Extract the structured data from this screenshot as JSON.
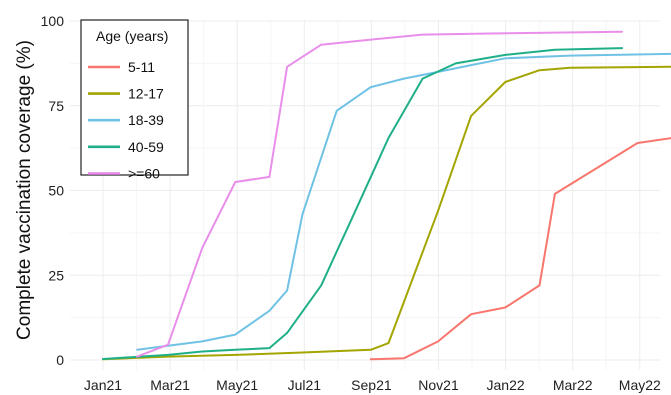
{
  "chart_data": {
    "type": "line",
    "title": "",
    "xlabel": "",
    "ylabel": "Complete vaccination coverage (%)",
    "x_ticks": [
      "Jan21",
      "Mar21",
      "May21",
      "Jul21",
      "Sep21",
      "Nov21",
      "Jan22",
      "Mar22",
      "May22"
    ],
    "ylim": [
      0,
      100
    ],
    "y_ticks": [
      0,
      25,
      50,
      75,
      100
    ],
    "grid": true,
    "legend": {
      "title": "Age (years)",
      "position": "top-left"
    },
    "series": [
      {
        "name": "5-11",
        "color": "#F8766D",
        "points": [
          {
            "x": "2021-09-15",
            "y": 0.2
          },
          {
            "x": "2021-10-15",
            "y": 0.5
          },
          {
            "x": "2021-11-15",
            "y": 5.5
          },
          {
            "x": "2021-12-15",
            "y": 13.5
          },
          {
            "x": "2022-01-15",
            "y": 15.5
          },
          {
            "x": "2022-02-15",
            "y": 22
          },
          {
            "x": "2022-03-01",
            "y": 49
          },
          {
            "x": "2022-05-15",
            "y": 64
          },
          {
            "x": "2022-06-15",
            "y": 65.5
          }
        ]
      },
      {
        "name": "12-17",
        "color": "#A3A500",
        "points": [
          {
            "x": "2021-01-15",
            "y": 0.2
          },
          {
            "x": "2021-03-15",
            "y": 1
          },
          {
            "x": "2021-05-15",
            "y": 1.5
          },
          {
            "x": "2021-07-15",
            "y": 2.2
          },
          {
            "x": "2021-09-15",
            "y": 3
          },
          {
            "x": "2021-10-01",
            "y": 5
          },
          {
            "x": "2021-11-15",
            "y": 44
          },
          {
            "x": "2021-12-15",
            "y": 72
          },
          {
            "x": "2022-01-15",
            "y": 82
          },
          {
            "x": "2022-02-15",
            "y": 85.5
          },
          {
            "x": "2022-03-15",
            "y": 86.2
          },
          {
            "x": "2022-06-15",
            "y": 86.5
          }
        ]
      },
      {
        "name": "18-39",
        "color": "#6FC2E5",
        "points": [
          {
            "x": "2021-02-15",
            "y": 3
          },
          {
            "x": "2021-03-15",
            "y": 4.2
          },
          {
            "x": "2021-04-15",
            "y": 5.5
          },
          {
            "x": "2021-05-15",
            "y": 7.5
          },
          {
            "x": "2021-06-15",
            "y": 14.5
          },
          {
            "x": "2021-07-01",
            "y": 20.5
          },
          {
            "x": "2021-07-15",
            "y": 43
          },
          {
            "x": "2021-08-15",
            "y": 73.5
          },
          {
            "x": "2021-09-15",
            "y": 80.5
          },
          {
            "x": "2021-10-15",
            "y": 83
          },
          {
            "x": "2021-11-15",
            "y": 85
          },
          {
            "x": "2021-12-15",
            "y": 87
          },
          {
            "x": "2022-01-15",
            "y": 89
          },
          {
            "x": "2022-03-15",
            "y": 89.8
          },
          {
            "x": "2022-06-15",
            "y": 90.3
          }
        ]
      },
      {
        "name": "40-59",
        "color": "#1FAF88",
        "points": [
          {
            "x": "2021-01-15",
            "y": 0.3
          },
          {
            "x": "2021-03-15",
            "y": 1.5
          },
          {
            "x": "2021-04-15",
            "y": 2.5
          },
          {
            "x": "2021-05-15",
            "y": 3
          },
          {
            "x": "2021-06-15",
            "y": 3.5
          },
          {
            "x": "2021-07-01",
            "y": 8
          },
          {
            "x": "2021-08-01",
            "y": 22
          },
          {
            "x": "2021-09-01",
            "y": 44
          },
          {
            "x": "2021-10-01",
            "y": 65.5
          },
          {
            "x": "2021-11-01",
            "y": 83
          },
          {
            "x": "2021-12-01",
            "y": 87.5
          },
          {
            "x": "2022-01-15",
            "y": 90
          },
          {
            "x": "2022-03-01",
            "y": 91.5
          },
          {
            "x": "2022-05-01",
            "y": 92
          }
        ]
      },
      {
        "name": ">=60",
        "color": "#E98EEB",
        "points": [
          {
            "x": "2021-02-15",
            "y": 1
          },
          {
            "x": "2021-03-15",
            "y": 4.5
          },
          {
            "x": "2021-04-15",
            "y": 33
          },
          {
            "x": "2021-05-15",
            "y": 52.5
          },
          {
            "x": "2021-06-15",
            "y": 54
          },
          {
            "x": "2021-07-01",
            "y": 86.5
          },
          {
            "x": "2021-08-01",
            "y": 93
          },
          {
            "x": "2021-09-15",
            "y": 94.5
          },
          {
            "x": "2021-11-01",
            "y": 96
          },
          {
            "x": "2022-01-01",
            "y": 96.3
          },
          {
            "x": "2022-05-01",
            "y": 96.8
          }
        ]
      }
    ]
  }
}
